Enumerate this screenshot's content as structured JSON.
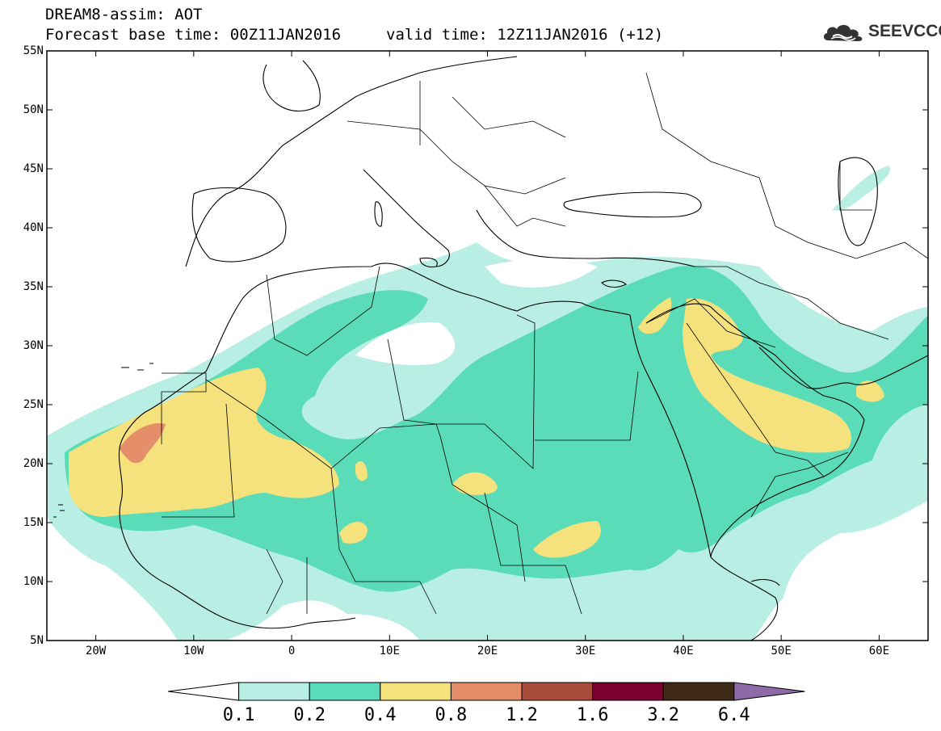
{
  "header": {
    "title_line1": "DREAM8-assim: AOT",
    "base_time": "Forecast base time: 00Z11JAN2016",
    "valid_time": "valid time: 12Z11JAN2016 (+12)"
  },
  "logo": {
    "text": "SEEVCCC",
    "icon": "cloud-icon"
  },
  "map": {
    "lat_range": [
      5,
      55
    ],
    "lon_range": [
      -25,
      65
    ],
    "lat_ticks": [
      "55N",
      "50N",
      "45N",
      "40N",
      "35N",
      "30N",
      "25N",
      "20N",
      "15N",
      "10N",
      "5N"
    ],
    "lon_ticks": [
      "20W",
      "10W",
      "0",
      "10E",
      "20E",
      "30E",
      "40E",
      "50E",
      "60E"
    ]
  },
  "colorbar": {
    "labels": [
      "0.1",
      "0.2",
      "0.4",
      "0.8",
      "1.2",
      "1.6",
      "3.2",
      "6.4"
    ],
    "colors": [
      "#ffffff",
      "#b9eee4",
      "#5bdcb8",
      "#f5e27c",
      "#e58e6a",
      "#a84b3c",
      "#7a0030",
      "#3d2914",
      "#8e6aa8"
    ]
  }
}
